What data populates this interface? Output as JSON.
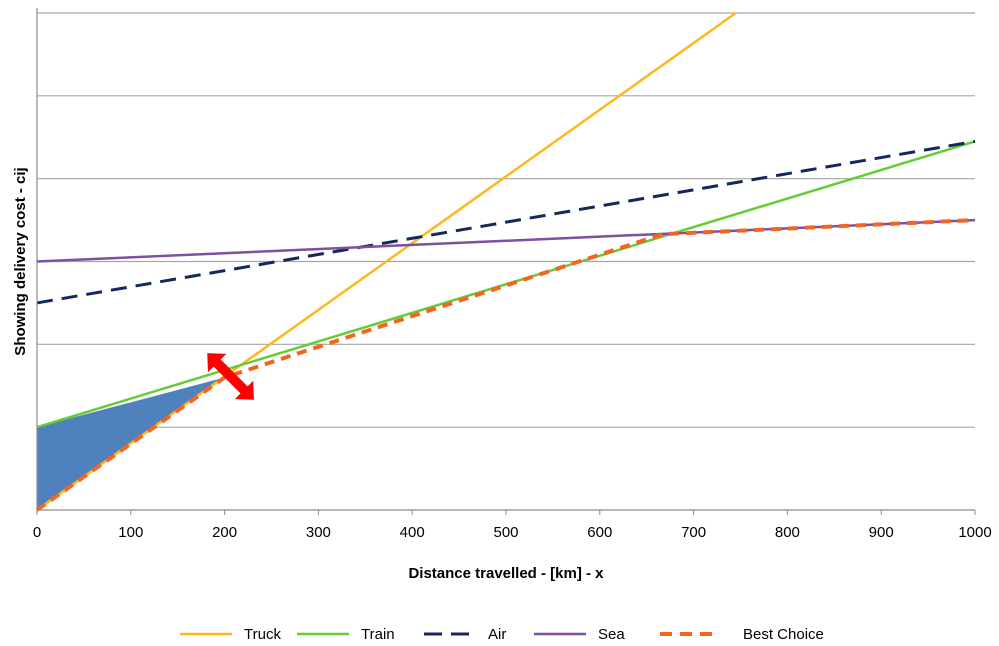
{
  "chart_data": {
    "type": "line",
    "xlabel": "Distance travelled - [km] - x",
    "ylabel": "Showing delivery cost - cij",
    "xlim": [
      0,
      1000
    ],
    "ylim": [
      0,
      6
    ],
    "x_ticks": [
      "0",
      "100",
      "200",
      "300",
      "400",
      "500",
      "600",
      "700",
      "800",
      "900",
      "1000"
    ],
    "grid": "horizontal",
    "legend_position": "bottom",
    "series": [
      {
        "name": "Truck",
        "color": "#FFB81C",
        "dash": "solid",
        "x": [
          0,
          745
        ],
        "y": [
          0,
          6
        ]
      },
      {
        "name": "Train",
        "color": "#66CC33",
        "dash": "solid",
        "x": [
          0,
          1000
        ],
        "y": [
          1,
          4.45
        ]
      },
      {
        "name": "Air",
        "color": "#14285C",
        "dash": "dashed",
        "x": [
          0,
          1000
        ],
        "y": [
          2.5,
          4.45
        ]
      },
      {
        "name": "Sea",
        "color": "#7F4FA0",
        "dash": "solid",
        "x": [
          0,
          1000
        ],
        "y": [
          3,
          3.5
        ]
      },
      {
        "name": "Best Choice",
        "color": "#F26522",
        "dash": "dashed",
        "x": [
          0,
          200,
          667,
          1000
        ],
        "y": [
          0,
          1.6,
          3.33,
          3.5
        ]
      }
    ],
    "shaded_region": {
      "color": "#4F81BD",
      "x": [
        0,
        200,
        0
      ],
      "y": [
        1,
        1.6,
        0
      ]
    },
    "annotation": {
      "type": "double-arrow",
      "color": "#FF0000",
      "at_x": 200,
      "at_y": 1.6
    }
  }
}
